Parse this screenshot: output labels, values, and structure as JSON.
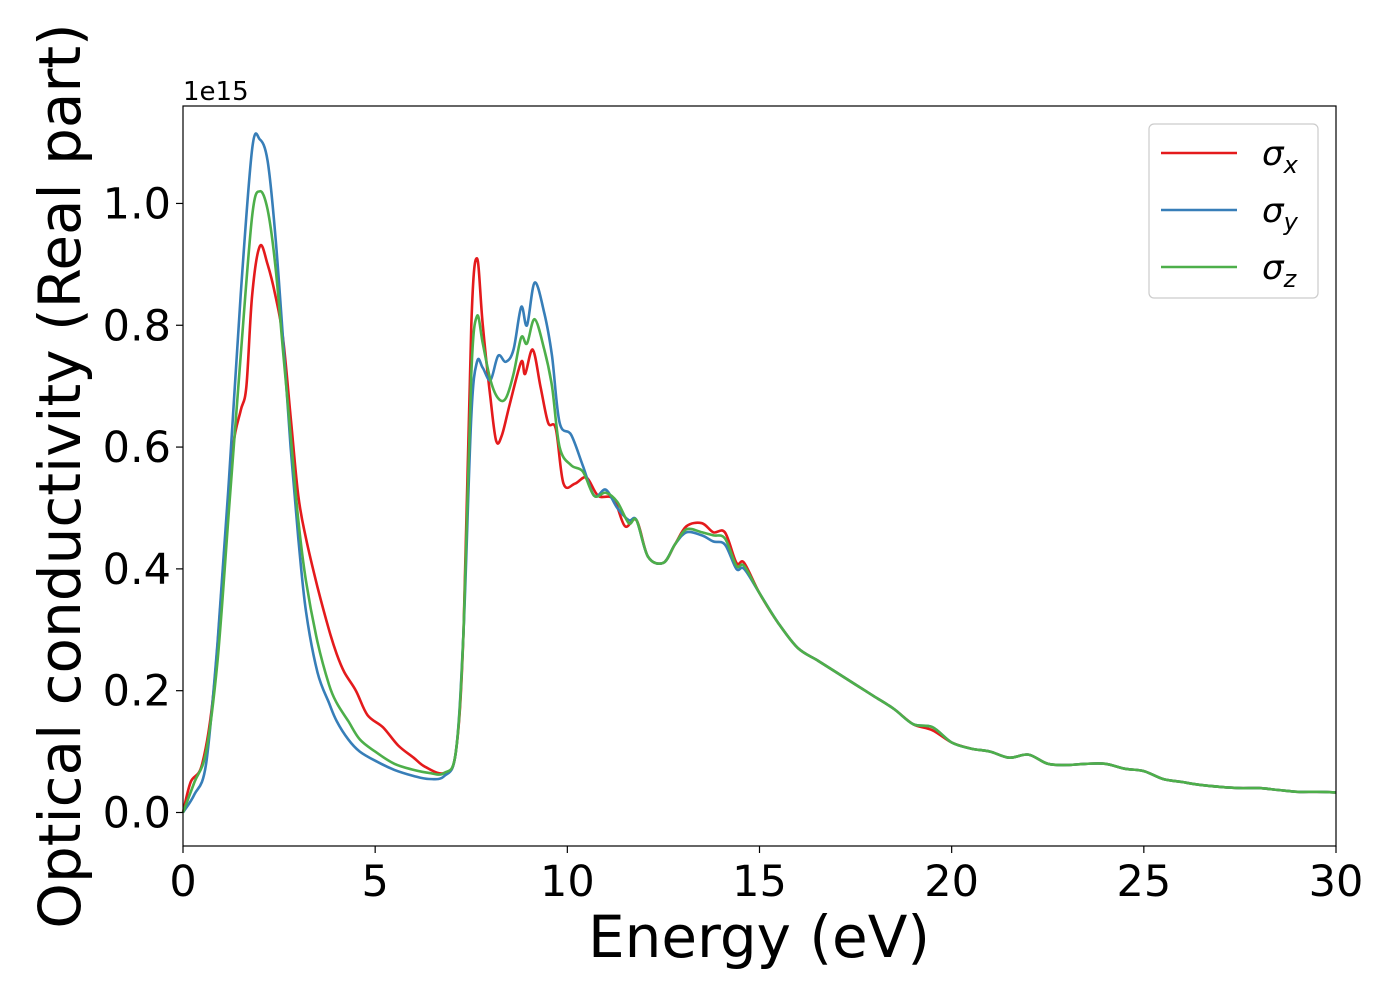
{
  "chart_data": {
    "type": "line",
    "xlabel": "Energy (eV)",
    "ylabel": "Optical conductivity (Real part)",
    "offset_label": "1e15",
    "xlim": [
      0,
      30
    ],
    "ylim": [
      -0.055,
      1.16
    ],
    "xticks": [
      0,
      5,
      10,
      15,
      20,
      25,
      30
    ],
    "xtick_labels": [
      "0",
      "5",
      "10",
      "15",
      "20",
      "25",
      "30"
    ],
    "yticks": [
      0.0,
      0.2,
      0.4,
      0.6,
      0.8,
      1.0
    ],
    "ytick_labels": [
      "0.0",
      "0.2",
      "0.4",
      "0.6",
      "0.8",
      "1.0"
    ],
    "grid": false,
    "legend_position": "top-right",
    "series": [
      {
        "name": "σx",
        "sym": "σ",
        "sub": "x",
        "color": "#e41a1c",
        "points": [
          [
            0,
            0.0
          ],
          [
            0.2,
            0.05
          ],
          [
            0.5,
            0.08
          ],
          [
            0.8,
            0.2
          ],
          [
            1.1,
            0.45
          ],
          [
            1.3,
            0.6
          ],
          [
            1.5,
            0.66
          ],
          [
            1.65,
            0.7
          ],
          [
            1.8,
            0.85
          ],
          [
            2.0,
            0.93
          ],
          [
            2.2,
            0.9
          ],
          [
            2.4,
            0.85
          ],
          [
            2.6,
            0.78
          ],
          [
            2.8,
            0.65
          ],
          [
            3.0,
            0.52
          ],
          [
            3.2,
            0.45
          ],
          [
            3.5,
            0.37
          ],
          [
            3.8,
            0.3
          ],
          [
            4.0,
            0.26
          ],
          [
            4.2,
            0.23
          ],
          [
            4.5,
            0.2
          ],
          [
            4.8,
            0.16
          ],
          [
            5.2,
            0.14
          ],
          [
            5.6,
            0.11
          ],
          [
            6.0,
            0.09
          ],
          [
            6.3,
            0.075
          ],
          [
            6.8,
            0.065
          ],
          [
            7.1,
            0.1
          ],
          [
            7.3,
            0.3
          ],
          [
            7.5,
            0.8
          ],
          [
            7.65,
            0.91
          ],
          [
            7.8,
            0.8
          ],
          [
            8.0,
            0.68
          ],
          [
            8.15,
            0.61
          ],
          [
            8.3,
            0.62
          ],
          [
            8.5,
            0.67
          ],
          [
            8.8,
            0.74
          ],
          [
            8.9,
            0.72
          ],
          [
            9.1,
            0.76
          ],
          [
            9.3,
            0.7
          ],
          [
            9.5,
            0.64
          ],
          [
            9.7,
            0.63
          ],
          [
            9.9,
            0.54
          ],
          [
            10.2,
            0.54
          ],
          [
            10.5,
            0.55
          ],
          [
            10.8,
            0.52
          ],
          [
            11.2,
            0.515
          ],
          [
            11.5,
            0.47
          ],
          [
            11.8,
            0.48
          ],
          [
            12.1,
            0.42
          ],
          [
            12.5,
            0.41
          ],
          [
            12.8,
            0.44
          ],
          [
            13.1,
            0.47
          ],
          [
            13.5,
            0.475
          ],
          [
            13.8,
            0.46
          ],
          [
            14.1,
            0.46
          ],
          [
            14.4,
            0.41
          ],
          [
            14.6,
            0.41
          ],
          [
            15.0,
            0.36
          ],
          [
            15.5,
            0.31
          ],
          [
            16.0,
            0.27
          ],
          [
            16.5,
            0.25
          ],
          [
            17.0,
            0.23
          ],
          [
            17.5,
            0.21
          ],
          [
            18.0,
            0.19
          ],
          [
            18.5,
            0.17
          ],
          [
            19.0,
            0.145
          ],
          [
            19.5,
            0.135
          ],
          [
            20.0,
            0.115
          ],
          [
            20.5,
            0.105
          ],
          [
            21.0,
            0.1
          ],
          [
            21.5,
            0.09
          ],
          [
            22.0,
            0.095
          ],
          [
            22.5,
            0.08
          ],
          [
            23.0,
            0.078
          ],
          [
            23.5,
            0.08
          ],
          [
            24.0,
            0.08
          ],
          [
            24.5,
            0.072
          ],
          [
            25.0,
            0.068
          ],
          [
            25.5,
            0.055
          ],
          [
            26.0,
            0.05
          ],
          [
            26.5,
            0.045
          ],
          [
            27.0,
            0.042
          ],
          [
            27.5,
            0.04
          ],
          [
            28.0,
            0.04
          ],
          [
            28.5,
            0.037
          ],
          [
            29.0,
            0.034
          ],
          [
            29.5,
            0.034
          ],
          [
            30.0,
            0.033
          ]
        ]
      },
      {
        "name": "σy",
        "sym": "σ",
        "sub": "y",
        "color": "#377eb8",
        "points": [
          [
            0,
            0.0
          ],
          [
            0.3,
            0.03
          ],
          [
            0.6,
            0.08
          ],
          [
            0.9,
            0.28
          ],
          [
            1.2,
            0.55
          ],
          [
            1.5,
            0.85
          ],
          [
            1.8,
            1.09
          ],
          [
            2.0,
            1.105
          ],
          [
            2.2,
            1.07
          ],
          [
            2.4,
            0.95
          ],
          [
            2.6,
            0.78
          ],
          [
            2.8,
            0.6
          ],
          [
            3.0,
            0.45
          ],
          [
            3.2,
            0.33
          ],
          [
            3.5,
            0.23
          ],
          [
            3.8,
            0.18
          ],
          [
            4.0,
            0.15
          ],
          [
            4.3,
            0.12
          ],
          [
            4.6,
            0.1
          ],
          [
            5.0,
            0.085
          ],
          [
            5.5,
            0.07
          ],
          [
            6.0,
            0.06
          ],
          [
            6.4,
            0.055
          ],
          [
            6.8,
            0.06
          ],
          [
            7.1,
            0.1
          ],
          [
            7.3,
            0.3
          ],
          [
            7.5,
            0.65
          ],
          [
            7.65,
            0.74
          ],
          [
            7.8,
            0.73
          ],
          [
            8.0,
            0.71
          ],
          [
            8.2,
            0.75
          ],
          [
            8.4,
            0.74
          ],
          [
            8.6,
            0.76
          ],
          [
            8.8,
            0.83
          ],
          [
            8.95,
            0.8
          ],
          [
            9.15,
            0.87
          ],
          [
            9.4,
            0.82
          ],
          [
            9.6,
            0.75
          ],
          [
            9.8,
            0.64
          ],
          [
            10.1,
            0.62
          ],
          [
            10.4,
            0.57
          ],
          [
            10.7,
            0.52
          ],
          [
            11.0,
            0.53
          ],
          [
            11.3,
            0.5
          ],
          [
            11.6,
            0.48
          ],
          [
            11.8,
            0.48
          ],
          [
            12.1,
            0.42
          ],
          [
            12.5,
            0.41
          ],
          [
            12.8,
            0.44
          ],
          [
            13.1,
            0.46
          ],
          [
            13.5,
            0.455
          ],
          [
            13.8,
            0.445
          ],
          [
            14.1,
            0.44
          ],
          [
            14.4,
            0.4
          ],
          [
            14.6,
            0.4
          ],
          [
            15.0,
            0.36
          ],
          [
            15.5,
            0.31
          ],
          [
            16.0,
            0.27
          ],
          [
            16.5,
            0.25
          ],
          [
            17.0,
            0.23
          ],
          [
            17.5,
            0.21
          ],
          [
            18.0,
            0.19
          ],
          [
            18.5,
            0.17
          ],
          [
            19.0,
            0.145
          ],
          [
            19.5,
            0.14
          ],
          [
            20.0,
            0.115
          ],
          [
            20.5,
            0.105
          ],
          [
            21.0,
            0.1
          ],
          [
            21.5,
            0.09
          ],
          [
            22.0,
            0.095
          ],
          [
            22.5,
            0.08
          ],
          [
            23.0,
            0.078
          ],
          [
            23.5,
            0.08
          ],
          [
            24.0,
            0.08
          ],
          [
            24.5,
            0.072
          ],
          [
            25.0,
            0.068
          ],
          [
            25.5,
            0.055
          ],
          [
            26.0,
            0.05
          ],
          [
            26.5,
            0.045
          ],
          [
            27.0,
            0.042
          ],
          [
            27.5,
            0.04
          ],
          [
            28.0,
            0.04
          ],
          [
            28.5,
            0.037
          ],
          [
            29.0,
            0.034
          ],
          [
            29.5,
            0.034
          ],
          [
            30.0,
            0.033
          ]
        ]
      },
      {
        "name": "σz",
        "sym": "σ",
        "sub": "z",
        "color": "#4daf4a",
        "points": [
          [
            0,
            0.0
          ],
          [
            0.3,
            0.05
          ],
          [
            0.6,
            0.1
          ],
          [
            0.9,
            0.25
          ],
          [
            1.2,
            0.5
          ],
          [
            1.5,
            0.75
          ],
          [
            1.8,
            0.98
          ],
          [
            2.0,
            1.02
          ],
          [
            2.2,
            0.99
          ],
          [
            2.4,
            0.9
          ],
          [
            2.6,
            0.76
          ],
          [
            2.8,
            0.62
          ],
          [
            3.0,
            0.48
          ],
          [
            3.2,
            0.38
          ],
          [
            3.5,
            0.28
          ],
          [
            3.8,
            0.21
          ],
          [
            4.0,
            0.18
          ],
          [
            4.3,
            0.15
          ],
          [
            4.6,
            0.12
          ],
          [
            5.0,
            0.1
          ],
          [
            5.5,
            0.08
          ],
          [
            6.0,
            0.07
          ],
          [
            6.4,
            0.065
          ],
          [
            6.8,
            0.065
          ],
          [
            7.1,
            0.1
          ],
          [
            7.3,
            0.3
          ],
          [
            7.5,
            0.72
          ],
          [
            7.65,
            0.815
          ],
          [
            7.8,
            0.77
          ],
          [
            8.0,
            0.71
          ],
          [
            8.2,
            0.68
          ],
          [
            8.4,
            0.68
          ],
          [
            8.6,
            0.72
          ],
          [
            8.8,
            0.78
          ],
          [
            8.95,
            0.77
          ],
          [
            9.15,
            0.81
          ],
          [
            9.4,
            0.76
          ],
          [
            9.6,
            0.7
          ],
          [
            9.8,
            0.6
          ],
          [
            10.1,
            0.57
          ],
          [
            10.4,
            0.56
          ],
          [
            10.7,
            0.52
          ],
          [
            11.0,
            0.525
          ],
          [
            11.3,
            0.51
          ],
          [
            11.6,
            0.475
          ],
          [
            11.8,
            0.48
          ],
          [
            12.1,
            0.42
          ],
          [
            12.5,
            0.41
          ],
          [
            12.8,
            0.44
          ],
          [
            13.1,
            0.465
          ],
          [
            13.5,
            0.46
          ],
          [
            13.8,
            0.455
          ],
          [
            14.1,
            0.45
          ],
          [
            14.4,
            0.405
          ],
          [
            14.6,
            0.405
          ],
          [
            15.0,
            0.36
          ],
          [
            15.5,
            0.31
          ],
          [
            16.0,
            0.27
          ],
          [
            16.5,
            0.25
          ],
          [
            17.0,
            0.23
          ],
          [
            17.5,
            0.21
          ],
          [
            18.0,
            0.19
          ],
          [
            18.5,
            0.17
          ],
          [
            19.0,
            0.145
          ],
          [
            19.5,
            0.14
          ],
          [
            20.0,
            0.115
          ],
          [
            20.5,
            0.105
          ],
          [
            21.0,
            0.1
          ],
          [
            21.5,
            0.09
          ],
          [
            22.0,
            0.095
          ],
          [
            22.5,
            0.08
          ],
          [
            23.0,
            0.078
          ],
          [
            23.5,
            0.08
          ],
          [
            24.0,
            0.08
          ],
          [
            24.5,
            0.072
          ],
          [
            25.0,
            0.068
          ],
          [
            25.5,
            0.055
          ],
          [
            26.0,
            0.05
          ],
          [
            26.5,
            0.045
          ],
          [
            27.0,
            0.042
          ],
          [
            27.5,
            0.04
          ],
          [
            28.0,
            0.04
          ],
          [
            28.5,
            0.037
          ],
          [
            29.0,
            0.034
          ],
          [
            29.5,
            0.034
          ],
          [
            30.0,
            0.033
          ]
        ]
      }
    ]
  }
}
